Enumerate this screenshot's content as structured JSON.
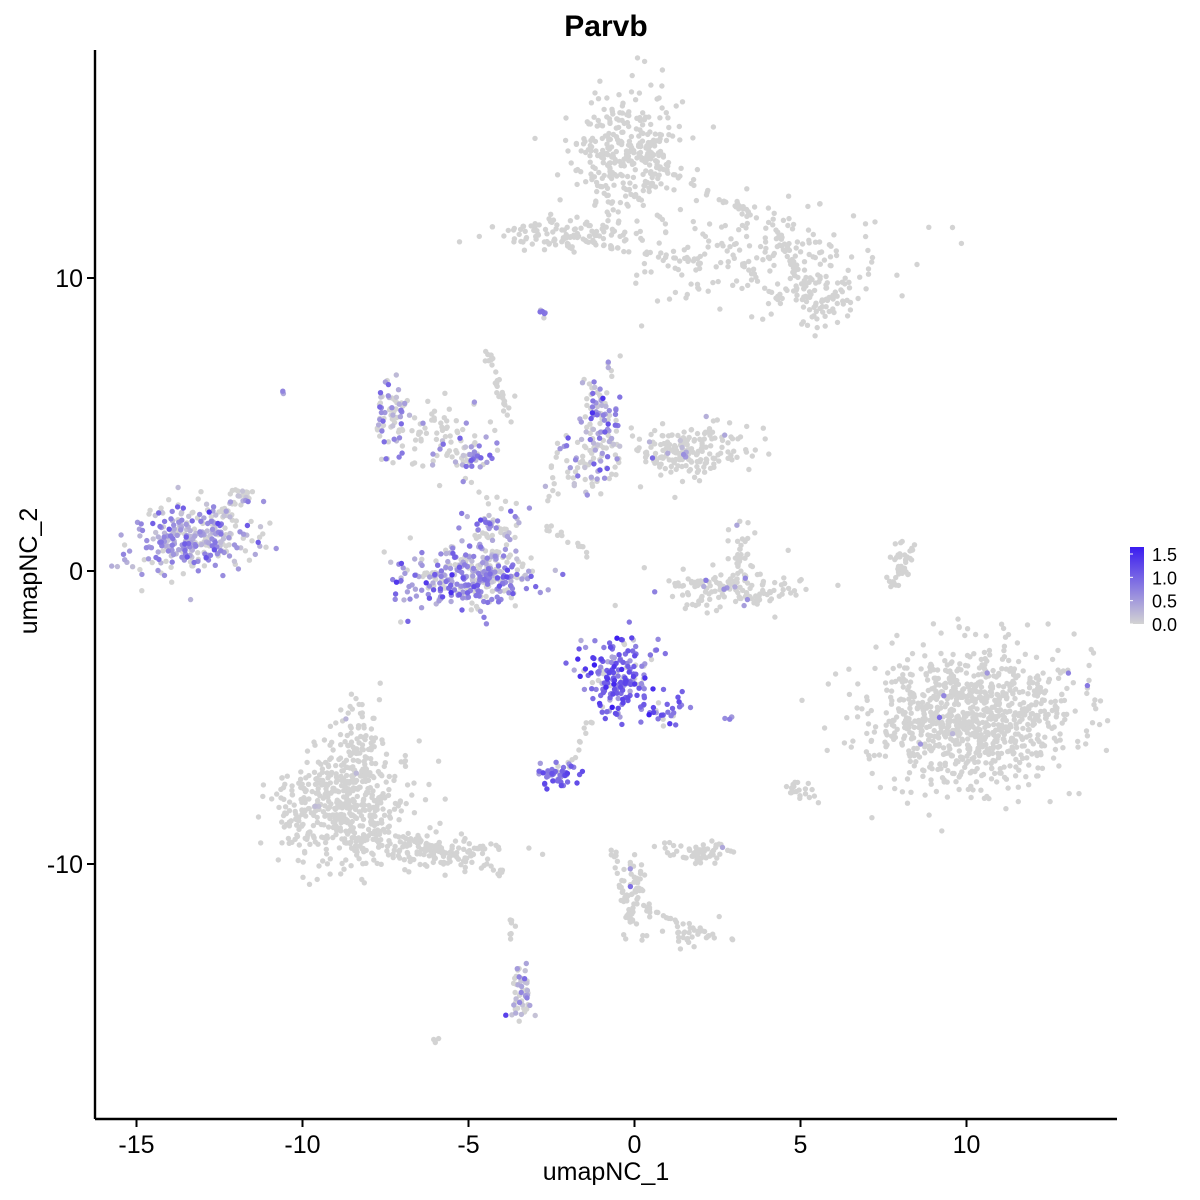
{
  "chart_data": {
    "type": "scatter",
    "title": "Parvb",
    "xlabel": "umapNC_1",
    "ylabel": "umapNC_2",
    "xlim": [
      -16.5,
      14.5
    ],
    "ylim": [
      -18.4,
      17.7
    ],
    "x_ticks": [
      -15,
      -10,
      -5,
      0,
      5,
      10
    ],
    "x_tick_labels": [
      "-15",
      "-10",
      "-5",
      "0",
      "5",
      "10"
    ],
    "y_ticks": [
      10,
      0,
      -10
    ],
    "y_tick_labels": [
      "10",
      "0",
      "-10"
    ],
    "grid": false,
    "legend_position": "right",
    "color_scale": {
      "low_color": "#d3d3d3",
      "high_color": "#3a1cf0",
      "min": 0,
      "max": 1.65,
      "breaks": [
        1.5,
        1.0,
        0.5,
        0.0
      ],
      "break_labels": [
        "1.5",
        "1.0",
        "0.5",
        "0.0"
      ]
    },
    "clusters": [
      {
        "cx": -0.2,
        "cy": 14.3,
        "sx": 0.8,
        "sy": 1.1,
        "n": 320,
        "expr_frac": 0.0,
        "expr_mean": 0.0
      },
      {
        "cx": 3.8,
        "cy": 10.8,
        "sx": 2.0,
        "sy": 0.9,
        "n": 200,
        "expr_frac": 0.0,
        "expr_mean": 0.0
      },
      {
        "cx": -2.0,
        "cy": 11.5,
        "sx": 1.0,
        "sy": 0.3,
        "n": 120,
        "expr_frac": 0.0,
        "expr_mean": 0.0
      },
      {
        "cx": 5.5,
        "cy": 9.2,
        "sx": 0.6,
        "sy": 0.5,
        "n": 80,
        "expr_frac": 0.0,
        "expr_mean": 0.0
      },
      {
        "cx": -13.3,
        "cy": 1.1,
        "sx": 0.9,
        "sy": 0.6,
        "n": 300,
        "expr_frac": 0.7,
        "expr_mean": 0.5
      },
      {
        "cx": -7.3,
        "cy": 5.3,
        "sx": 0.3,
        "sy": 0.7,
        "n": 70,
        "expr_frac": 0.55,
        "expr_mean": 0.55
      },
      {
        "cx": -5.8,
        "cy": 4.6,
        "sx": 0.8,
        "sy": 0.6,
        "n": 80,
        "expr_frac": 0.2,
        "expr_mean": 0.5
      },
      {
        "cx": -4.8,
        "cy": 3.9,
        "sx": 0.3,
        "sy": 0.2,
        "n": 30,
        "expr_frac": 0.7,
        "expr_mean": 0.55
      },
      {
        "cx": -5.0,
        "cy": -0.2,
        "sx": 1.0,
        "sy": 0.5,
        "n": 320,
        "expr_frac": 0.7,
        "expr_mean": 0.6
      },
      {
        "cx": -4.3,
        "cy": 1.4,
        "sx": 0.4,
        "sy": 0.6,
        "n": 80,
        "expr_frac": 0.6,
        "expr_mean": 0.55
      },
      {
        "cx": -1.0,
        "cy": 5.2,
        "sx": 0.3,
        "sy": 0.8,
        "n": 100,
        "expr_frac": 0.65,
        "expr_mean": 0.6
      },
      {
        "cx": 1.5,
        "cy": 4.1,
        "sx": 1.0,
        "sy": 0.5,
        "n": 200,
        "expr_frac": 0.05,
        "expr_mean": 0.5
      },
      {
        "cx": -1.6,
        "cy": 3.6,
        "sx": 0.5,
        "sy": 0.5,
        "n": 50,
        "expr_frac": 0.4,
        "expr_mean": 0.5
      },
      {
        "cx": 3.1,
        "cy": -0.6,
        "sx": 1.1,
        "sy": 0.35,
        "n": 150,
        "expr_frac": 0.05,
        "expr_mean": 0.5
      },
      {
        "cx": 3.2,
        "cy": 0.6,
        "sx": 0.2,
        "sy": 0.5,
        "n": 30,
        "expr_frac": 0.05,
        "expr_mean": 0.5
      },
      {
        "cx": 10.2,
        "cy": -5.0,
        "sx": 1.5,
        "sy": 1.2,
        "n": 950,
        "expr_frac": 0.008,
        "expr_mean": 0.7
      },
      {
        "cx": -0.5,
        "cy": -3.6,
        "sx": 0.55,
        "sy": 0.65,
        "n": 180,
        "expr_frac": 0.85,
        "expr_mean": 0.95
      },
      {
        "cx": 0.9,
        "cy": -4.8,
        "sx": 0.4,
        "sy": 0.4,
        "n": 30,
        "expr_frac": 0.8,
        "expr_mean": 0.95
      },
      {
        "cx": -2.3,
        "cy": -6.9,
        "sx": 0.3,
        "sy": 0.2,
        "n": 50,
        "expr_frac": 0.9,
        "expr_mean": 0.85
      },
      {
        "cx": -8.8,
        "cy": -8.2,
        "sx": 1.0,
        "sy": 1.0,
        "n": 500,
        "expr_frac": 0.012,
        "expr_mean": 0.5
      },
      {
        "cx": -8.3,
        "cy": -6.0,
        "sx": 0.5,
        "sy": 0.7,
        "n": 100,
        "expr_frac": 0.02,
        "expr_mean": 0.5
      },
      {
        "cx": -5.9,
        "cy": -9.6,
        "sx": 1.0,
        "sy": 0.3,
        "n": 120,
        "expr_frac": 0.01,
        "expr_mean": 0.5
      },
      {
        "cx": 2.0,
        "cy": -9.6,
        "sx": 0.5,
        "sy": 0.2,
        "n": 60,
        "expr_frac": 0.02,
        "expr_mean": 0.5
      },
      {
        "cx": 0.0,
        "cy": -11.0,
        "sx": 0.2,
        "sy": 0.8,
        "n": 50,
        "expr_frac": 0.02,
        "expr_mean": 0.5
      },
      {
        "cx": 1.8,
        "cy": -12.5,
        "sx": 0.5,
        "sy": 0.2,
        "n": 25,
        "expr_frac": 0.05,
        "expr_mean": 0.4
      },
      {
        "cx": -3.4,
        "cy": -14.7,
        "sx": 0.15,
        "sy": 0.5,
        "n": 50,
        "expr_frac": 0.55,
        "expr_mean": 0.4
      },
      {
        "cx": 5.0,
        "cy": -7.5,
        "sx": 0.3,
        "sy": 0.2,
        "n": 20,
        "expr_frac": 0.0,
        "expr_mean": 0.0
      },
      {
        "cx": 8.0,
        "cy": 0.1,
        "sx": 0.15,
        "sy": 0.4,
        "n": 25,
        "expr_frac": 0.0,
        "expr_mean": 0.0
      },
      {
        "cx": -11.8,
        "cy": 2.5,
        "sx": 0.2,
        "sy": 0.2,
        "n": 15,
        "expr_frac": 0.3,
        "expr_mean": 0.3
      },
      {
        "cx": -2.7,
        "cy": 8.8,
        "sx": 0.1,
        "sy": 0.1,
        "n": 6,
        "expr_frac": 0.8,
        "expr_mean": 0.6
      },
      {
        "cx": -10.6,
        "cy": 6.1,
        "sx": 0.05,
        "sy": 0.05,
        "n": 3,
        "expr_frac": 1.0,
        "expr_mean": 0.5
      },
      {
        "cx": 2.9,
        "cy": -5.0,
        "sx": 0.1,
        "sy": 0.05,
        "n": 4,
        "expr_frac": 1.0,
        "expr_mean": 0.5
      },
      {
        "cx": -6.0,
        "cy": -16.1,
        "sx": 0.1,
        "sy": 0.1,
        "n": 4,
        "expr_frac": 0.0,
        "expr_mean": 0.0
      }
    ],
    "trails": [
      {
        "x0": -4.4,
        "y0": 7.4,
        "x1": -3.8,
        "y1": 5.2,
        "n": 30
      },
      {
        "x0": -2.7,
        "y0": 1.5,
        "x1": -1.3,
        "y1": 0.6,
        "n": 14
      },
      {
        "x0": -2.3,
        "y0": 4.6,
        "x1": -2.6,
        "y1": 2.2,
        "n": 10
      },
      {
        "x0": 0.5,
        "y0": 14.0,
        "x1": 3.8,
        "y1": 12.0,
        "n": 35
      },
      {
        "x0": 4.3,
        "y0": 11.5,
        "x1": 5.2,
        "y1": 9.6,
        "n": 30
      },
      {
        "x0": -1.0,
        "y0": 11.1,
        "x1": 2.2,
        "y1": 10.5,
        "n": 25
      },
      {
        "x0": -12.6,
        "y0": 1.8,
        "x1": -11.5,
        "y1": 2.8,
        "n": 18
      },
      {
        "x0": 8.5,
        "y0": 1.0,
        "x1": 7.7,
        "y1": -0.6,
        "n": 20
      },
      {
        "x0": -0.6,
        "y0": -9.5,
        "x1": -0.1,
        "y1": -12.0,
        "n": 30
      },
      {
        "x0": 0.3,
        "y0": -11.5,
        "x1": 2.4,
        "y1": -12.5,
        "n": 25
      },
      {
        "x0": -3.7,
        "y0": -11.8,
        "x1": -3.7,
        "y1": -12.6,
        "n": 8
      },
      {
        "x0": -1.3,
        "y0": -5.0,
        "x1": -2.0,
        "y1": -6.6,
        "n": 12
      },
      {
        "x0": -7.1,
        "y0": -9.0,
        "x1": -3.9,
        "y1": -10.3,
        "n": 40
      }
    ]
  }
}
